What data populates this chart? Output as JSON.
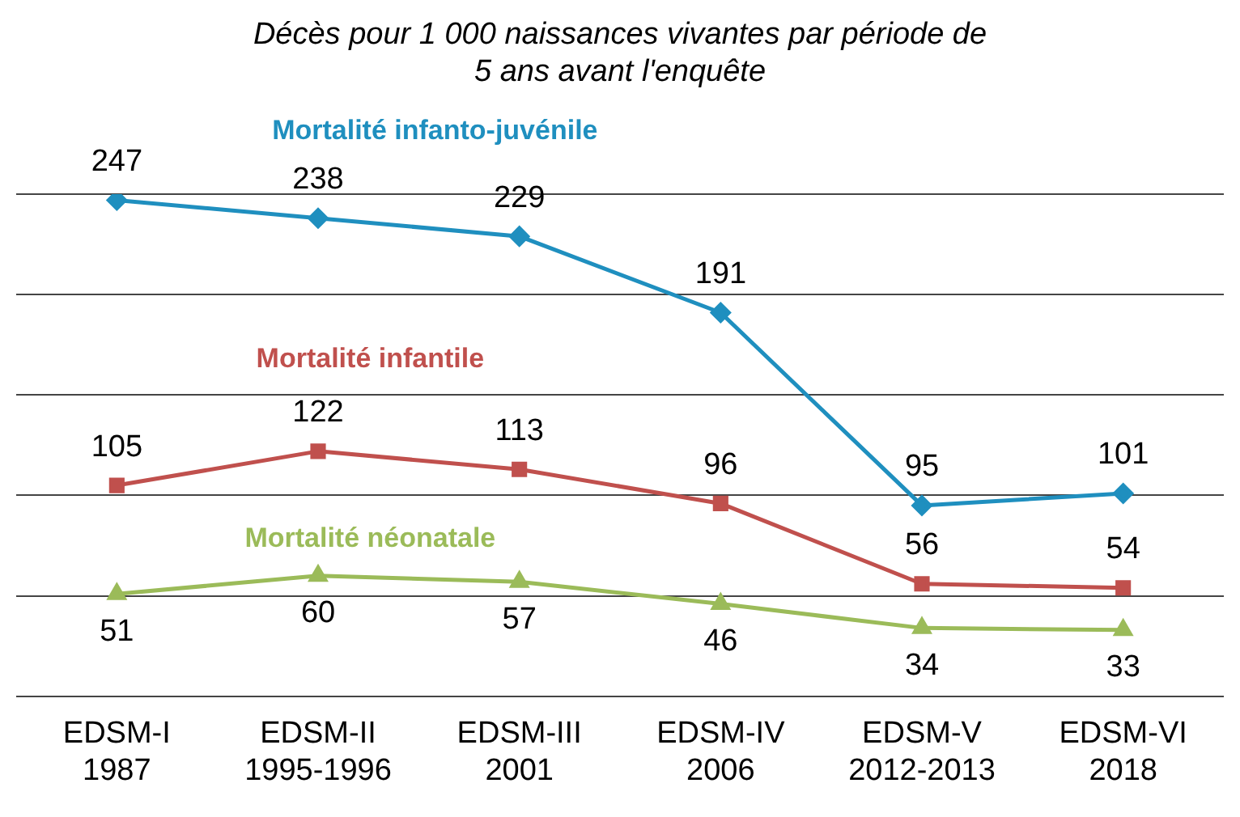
{
  "chart_data": {
    "type": "line",
    "title": "Décès pour 1 000 naissances vivantes par période de  5 ans avant l'enquête",
    "categories": [
      "EDSM-I\n1987",
      "EDSM-II\n1995-1996",
      "EDSM-III\n2001",
      "EDSM-IV\n2006",
      "EDSM-V\n2012-2013",
      "EDSM-VI\n2018"
    ],
    "series": [
      {
        "name": "Mortalité infanto-juvénile",
        "color": "#1f8fbf",
        "marker": "diamond",
        "values": [
          247,
          238,
          229,
          191,
          95,
          101
        ]
      },
      {
        "name": "Mortalité infantile",
        "color": "#c0504d",
        "marker": "square",
        "values": [
          105,
          122,
          113,
          96,
          56,
          54
        ]
      },
      {
        "name": "Mortalité néonatale",
        "color": "#9bbb59",
        "marker": "triangle",
        "values": [
          51,
          60,
          57,
          46,
          34,
          33
        ]
      }
    ],
    "ylim": [
      0,
      250
    ],
    "yticks": [
      {
        "value": 0,
        "label": null
      },
      {
        "value": 50,
        "label": null
      },
      {
        "value": 100,
        "label": null
      },
      {
        "value": 150,
        "label": null
      },
      {
        "value": 200,
        "label": null
      },
      {
        "value": 250,
        "label": null
      }
    ],
    "tick_labels": "x",
    "grid": "y",
    "data_labels": true,
    "legend": false,
    "line_style": "solid"
  }
}
